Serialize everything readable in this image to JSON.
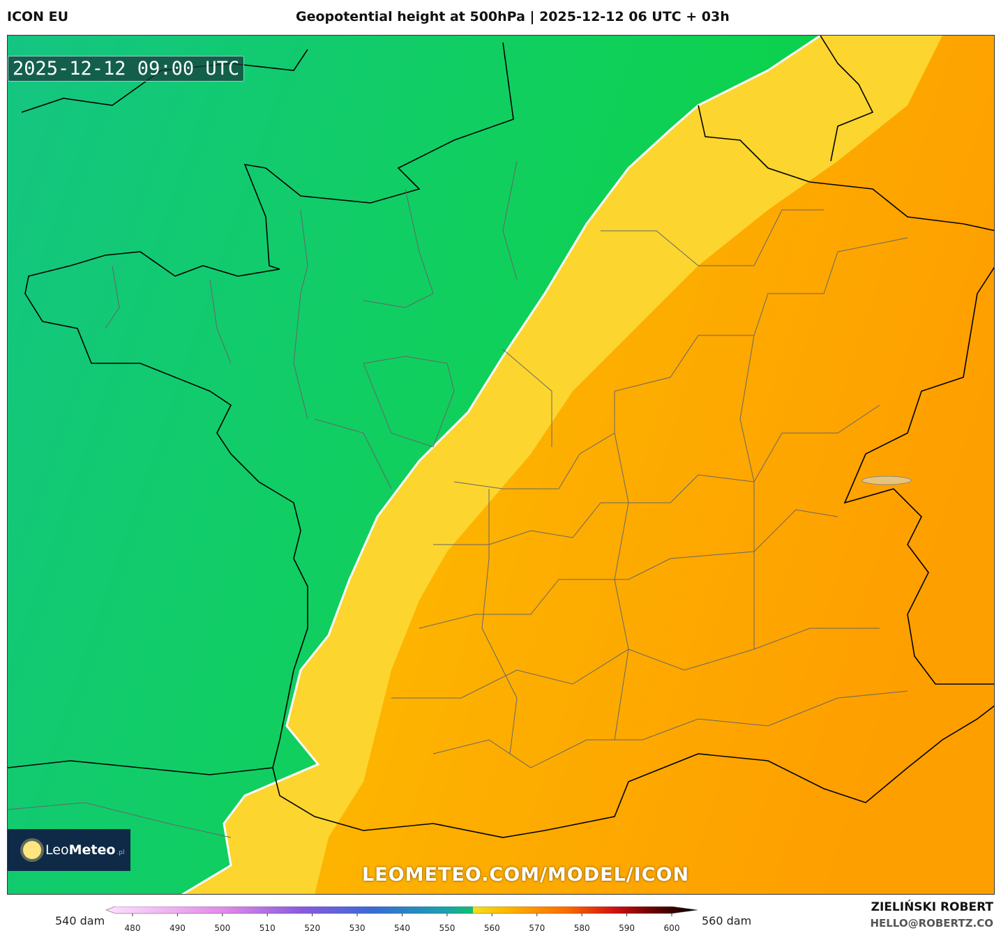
{
  "header": {
    "model": "ICON EU",
    "title": "Geopotential height at 500hPa | 2025-12-12 06 UTC + 03h"
  },
  "map": {
    "timestamp": "2025-12-12 09:00 UTC",
    "logo": {
      "name_light": "Leo",
      "name_bold": "Meteo",
      "suffix": ".pl"
    },
    "watermark": "LEOMETEO.COM/MODEL/ICON"
  },
  "legend": {
    "left_label": "540 dam",
    "right_label": "560 dam",
    "ticks": [
      480,
      490,
      500,
      510,
      520,
      530,
      540,
      550,
      560,
      570,
      580,
      590,
      600
    ]
  },
  "footer": {
    "author": "ZIELIŃSKI ROBERT",
    "email": "HELLO@ROBERTZ.CO"
  }
}
